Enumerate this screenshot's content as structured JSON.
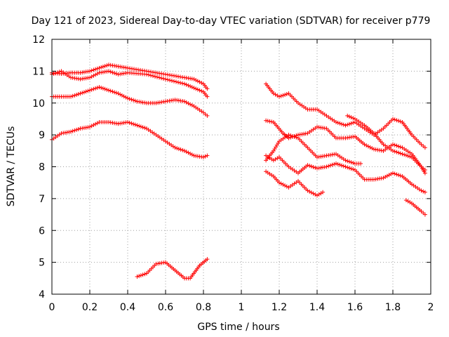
{
  "chart_data": {
    "type": "scatter",
    "title": "Day 121 of 2023, Sidereal Day-to-day VTEC variation (SDTVAR) for receiver p779",
    "xlabel": "GPS time / hours",
    "ylabel": "SDTVAR / TECUs",
    "xlim": [
      0,
      2
    ],
    "ylim": [
      4,
      12
    ],
    "xticks": [
      0,
      0.2,
      0.4,
      0.6,
      0.8,
      1,
      1.2,
      1.4,
      1.6,
      1.8,
      2
    ],
    "xtick_labels": [
      "0",
      "0.2",
      "0.4",
      "0.6",
      "0.8",
      "1",
      "1.2",
      "1.4",
      "1.6",
      "1.8",
      "2"
    ],
    "yticks": [
      4,
      5,
      6,
      7,
      8,
      9,
      10,
      11,
      12
    ],
    "ytick_labels": [
      "4",
      "5",
      "6",
      "7",
      "8",
      "9",
      "10",
      "11",
      "12"
    ],
    "grid": true,
    "marker": "+",
    "color": "#ff0000",
    "series": [
      {
        "name": "s1",
        "points": [
          [
            0.0,
            10.95
          ],
          [
            0.05,
            10.92
          ],
          [
            0.1,
            10.95
          ],
          [
            0.15,
            10.95
          ],
          [
            0.2,
            11.0
          ],
          [
            0.25,
            11.1
          ],
          [
            0.3,
            11.2
          ],
          [
            0.35,
            11.15
          ],
          [
            0.4,
            11.1
          ],
          [
            0.5,
            11.0
          ],
          [
            0.6,
            10.9
          ],
          [
            0.7,
            10.8
          ],
          [
            0.75,
            10.75
          ],
          [
            0.8,
            10.6
          ],
          [
            0.82,
            10.45
          ]
        ]
      },
      {
        "name": "s2",
        "points": [
          [
            0.0,
            10.9
          ],
          [
            0.05,
            11.0
          ],
          [
            0.1,
            10.8
          ],
          [
            0.15,
            10.75
          ],
          [
            0.2,
            10.8
          ],
          [
            0.25,
            10.95
          ],
          [
            0.3,
            11.0
          ],
          [
            0.35,
            10.9
          ],
          [
            0.4,
            10.95
          ],
          [
            0.5,
            10.9
          ],
          [
            0.6,
            10.75
          ],
          [
            0.7,
            10.6
          ],
          [
            0.8,
            10.35
          ],
          [
            0.82,
            10.2
          ]
        ]
      },
      {
        "name": "s3",
        "points": [
          [
            0.0,
            10.2
          ],
          [
            0.05,
            10.2
          ],
          [
            0.1,
            10.2
          ],
          [
            0.15,
            10.3
          ],
          [
            0.2,
            10.4
          ],
          [
            0.25,
            10.5
          ],
          [
            0.3,
            10.4
          ],
          [
            0.35,
            10.3
          ],
          [
            0.4,
            10.15
          ],
          [
            0.45,
            10.05
          ],
          [
            0.5,
            10.0
          ],
          [
            0.55,
            10.0
          ],
          [
            0.6,
            10.05
          ],
          [
            0.65,
            10.1
          ],
          [
            0.7,
            10.05
          ],
          [
            0.75,
            9.9
          ],
          [
            0.8,
            9.7
          ],
          [
            0.82,
            9.6
          ]
        ]
      },
      {
        "name": "s4",
        "points": [
          [
            0.0,
            8.85
          ],
          [
            0.05,
            9.05
          ],
          [
            0.1,
            9.1
          ],
          [
            0.15,
            9.2
          ],
          [
            0.2,
            9.25
          ],
          [
            0.25,
            9.4
          ],
          [
            0.3,
            9.4
          ],
          [
            0.35,
            9.35
          ],
          [
            0.4,
            9.4
          ],
          [
            0.45,
            9.3
          ],
          [
            0.5,
            9.2
          ],
          [
            0.55,
            9.0
          ],
          [
            0.6,
            8.8
          ],
          [
            0.65,
            8.6
          ],
          [
            0.7,
            8.5
          ],
          [
            0.75,
            8.35
          ],
          [
            0.8,
            8.3
          ],
          [
            0.82,
            8.35
          ]
        ]
      },
      {
        "name": "s5",
        "points": [
          [
            0.45,
            4.55
          ],
          [
            0.5,
            4.65
          ],
          [
            0.55,
            4.95
          ],
          [
            0.6,
            5.0
          ],
          [
            0.65,
            4.75
          ],
          [
            0.7,
            4.5
          ],
          [
            0.73,
            4.5
          ],
          [
            0.78,
            4.9
          ],
          [
            0.82,
            5.1
          ]
        ]
      },
      {
        "name": "s6",
        "points": [
          [
            1.13,
            10.6
          ],
          [
            1.17,
            10.3
          ],
          [
            1.2,
            10.2
          ],
          [
            1.25,
            10.3
          ],
          [
            1.3,
            10.0
          ],
          [
            1.35,
            9.8
          ],
          [
            1.4,
            9.8
          ],
          [
            1.45,
            9.6
          ],
          [
            1.5,
            9.4
          ],
          [
            1.55,
            9.3
          ],
          [
            1.6,
            9.4
          ],
          [
            1.65,
            9.2
          ],
          [
            1.7,
            9.0
          ],
          [
            1.75,
            9.2
          ],
          [
            1.8,
            9.5
          ],
          [
            1.85,
            9.4
          ],
          [
            1.9,
            9.0
          ],
          [
            1.95,
            8.7
          ],
          [
            1.97,
            8.6
          ]
        ]
      },
      {
        "name": "s7",
        "points": [
          [
            1.13,
            9.45
          ],
          [
            1.17,
            9.4
          ],
          [
            1.22,
            9.05
          ],
          [
            1.25,
            8.9
          ],
          [
            1.3,
            9.0
          ],
          [
            1.35,
            9.05
          ],
          [
            1.4,
            9.25
          ],
          [
            1.45,
            9.2
          ],
          [
            1.5,
            8.9
          ],
          [
            1.55,
            8.9
          ],
          [
            1.6,
            8.95
          ],
          [
            1.65,
            8.7
          ],
          [
            1.7,
            8.55
          ],
          [
            1.75,
            8.5
          ],
          [
            1.8,
            8.7
          ],
          [
            1.85,
            8.6
          ],
          [
            1.9,
            8.4
          ],
          [
            1.95,
            8.0
          ],
          [
            1.97,
            7.8
          ]
        ]
      },
      {
        "name": "s8",
        "points": [
          [
            1.13,
            8.2
          ],
          [
            1.17,
            8.5
          ],
          [
            1.2,
            8.8
          ],
          [
            1.25,
            9.0
          ],
          [
            1.3,
            8.9
          ],
          [
            1.35,
            8.6
          ],
          [
            1.4,
            8.3
          ],
          [
            1.45,
            8.35
          ],
          [
            1.5,
            8.4
          ],
          [
            1.55,
            8.2
          ],
          [
            1.6,
            8.1
          ],
          [
            1.63,
            8.1
          ]
        ]
      },
      {
        "name": "s9",
        "points": [
          [
            1.56,
            9.6
          ],
          [
            1.6,
            9.5
          ],
          [
            1.65,
            9.3
          ],
          [
            1.7,
            9.05
          ],
          [
            1.75,
            8.7
          ],
          [
            1.8,
            8.5
          ],
          [
            1.85,
            8.4
          ],
          [
            1.9,
            8.3
          ],
          [
            1.95,
            8.0
          ],
          [
            1.97,
            7.9
          ]
        ]
      },
      {
        "name": "s10",
        "points": [
          [
            1.13,
            8.35
          ],
          [
            1.17,
            8.2
          ],
          [
            1.2,
            8.3
          ],
          [
            1.25,
            8.0
          ],
          [
            1.3,
            7.8
          ],
          [
            1.35,
            8.05
          ],
          [
            1.4,
            7.95
          ],
          [
            1.45,
            8.0
          ],
          [
            1.5,
            8.1
          ],
          [
            1.55,
            8.0
          ],
          [
            1.6,
            7.9
          ],
          [
            1.65,
            7.6
          ],
          [
            1.7,
            7.6
          ],
          [
            1.75,
            7.65
          ],
          [
            1.8,
            7.8
          ],
          [
            1.85,
            7.7
          ],
          [
            1.9,
            7.45
          ],
          [
            1.95,
            7.25
          ],
          [
            1.97,
            7.2
          ]
        ]
      },
      {
        "name": "s11",
        "points": [
          [
            1.13,
            7.85
          ],
          [
            1.17,
            7.7
          ],
          [
            1.2,
            7.5
          ],
          [
            1.25,
            7.35
          ],
          [
            1.3,
            7.55
          ],
          [
            1.35,
            7.25
          ],
          [
            1.4,
            7.1
          ],
          [
            1.43,
            7.2
          ]
        ]
      },
      {
        "name": "s12",
        "points": [
          [
            1.87,
            6.95
          ],
          [
            1.9,
            6.85
          ],
          [
            1.95,
            6.6
          ],
          [
            1.97,
            6.5
          ]
        ]
      }
    ]
  }
}
